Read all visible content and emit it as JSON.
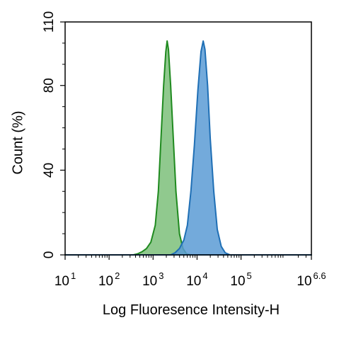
{
  "chart_data": {
    "type": "area",
    "title": "",
    "xlabel": "Log Fluoresence Intensity-H",
    "ylabel": "Count  (%)",
    "x_scale": "log",
    "xlim_log10": [
      1,
      6.6
    ],
    "ylim": [
      0,
      110
    ],
    "grid": false,
    "legend": "none",
    "x_ticks": [
      {
        "base": "10",
        "exp": "1",
        "log": 1
      },
      {
        "base": "10",
        "exp": "2",
        "log": 2
      },
      {
        "base": "10",
        "exp": "3",
        "log": 3
      },
      {
        "base": "10",
        "exp": "4",
        "log": 4
      },
      {
        "base": "10",
        "exp": "5",
        "log": 5
      },
      {
        "base": "10",
        "exp": "6.6",
        "log": 6.6
      }
    ],
    "y_ticks": [
      {
        "label": "0",
        "value": 0
      },
      {
        "label": "40",
        "value": 40
      },
      {
        "label": "80",
        "value": 80
      },
      {
        "label": "110",
        "value": 110
      }
    ],
    "series": [
      {
        "fill": "#7dc07a",
        "stroke": "#1f8a1f",
        "points": [
          [
            1.0,
            0
          ],
          [
            2.55,
            0
          ],
          [
            2.65,
            0.5
          ],
          [
            2.75,
            1.5
          ],
          [
            2.85,
            3
          ],
          [
            2.95,
            6
          ],
          [
            3.05,
            14
          ],
          [
            3.12,
            30
          ],
          [
            3.18,
            55
          ],
          [
            3.24,
            80
          ],
          [
            3.29,
            96
          ],
          [
            3.32,
            101
          ],
          [
            3.35,
            97
          ],
          [
            3.4,
            80
          ],
          [
            3.46,
            55
          ],
          [
            3.52,
            30
          ],
          [
            3.6,
            10
          ],
          [
            3.68,
            3
          ],
          [
            3.76,
            0.5
          ],
          [
            3.85,
            0
          ],
          [
            6.6,
            0
          ]
        ]
      },
      {
        "fill": "#5b9bd5",
        "stroke": "#1f6fb5",
        "points": [
          [
            1.0,
            0
          ],
          [
            3.4,
            0
          ],
          [
            3.5,
            1
          ],
          [
            3.6,
            3
          ],
          [
            3.7,
            7
          ],
          [
            3.78,
            14
          ],
          [
            3.86,
            30
          ],
          [
            3.94,
            52
          ],
          [
            4.02,
            78
          ],
          [
            4.09,
            96
          ],
          [
            4.14,
            101
          ],
          [
            4.18,
            97
          ],
          [
            4.24,
            80
          ],
          [
            4.3,
            55
          ],
          [
            4.38,
            30
          ],
          [
            4.46,
            12
          ],
          [
            4.55,
            4
          ],
          [
            4.64,
            1
          ],
          [
            4.75,
            0
          ],
          [
            6.6,
            0
          ]
        ]
      }
    ]
  }
}
